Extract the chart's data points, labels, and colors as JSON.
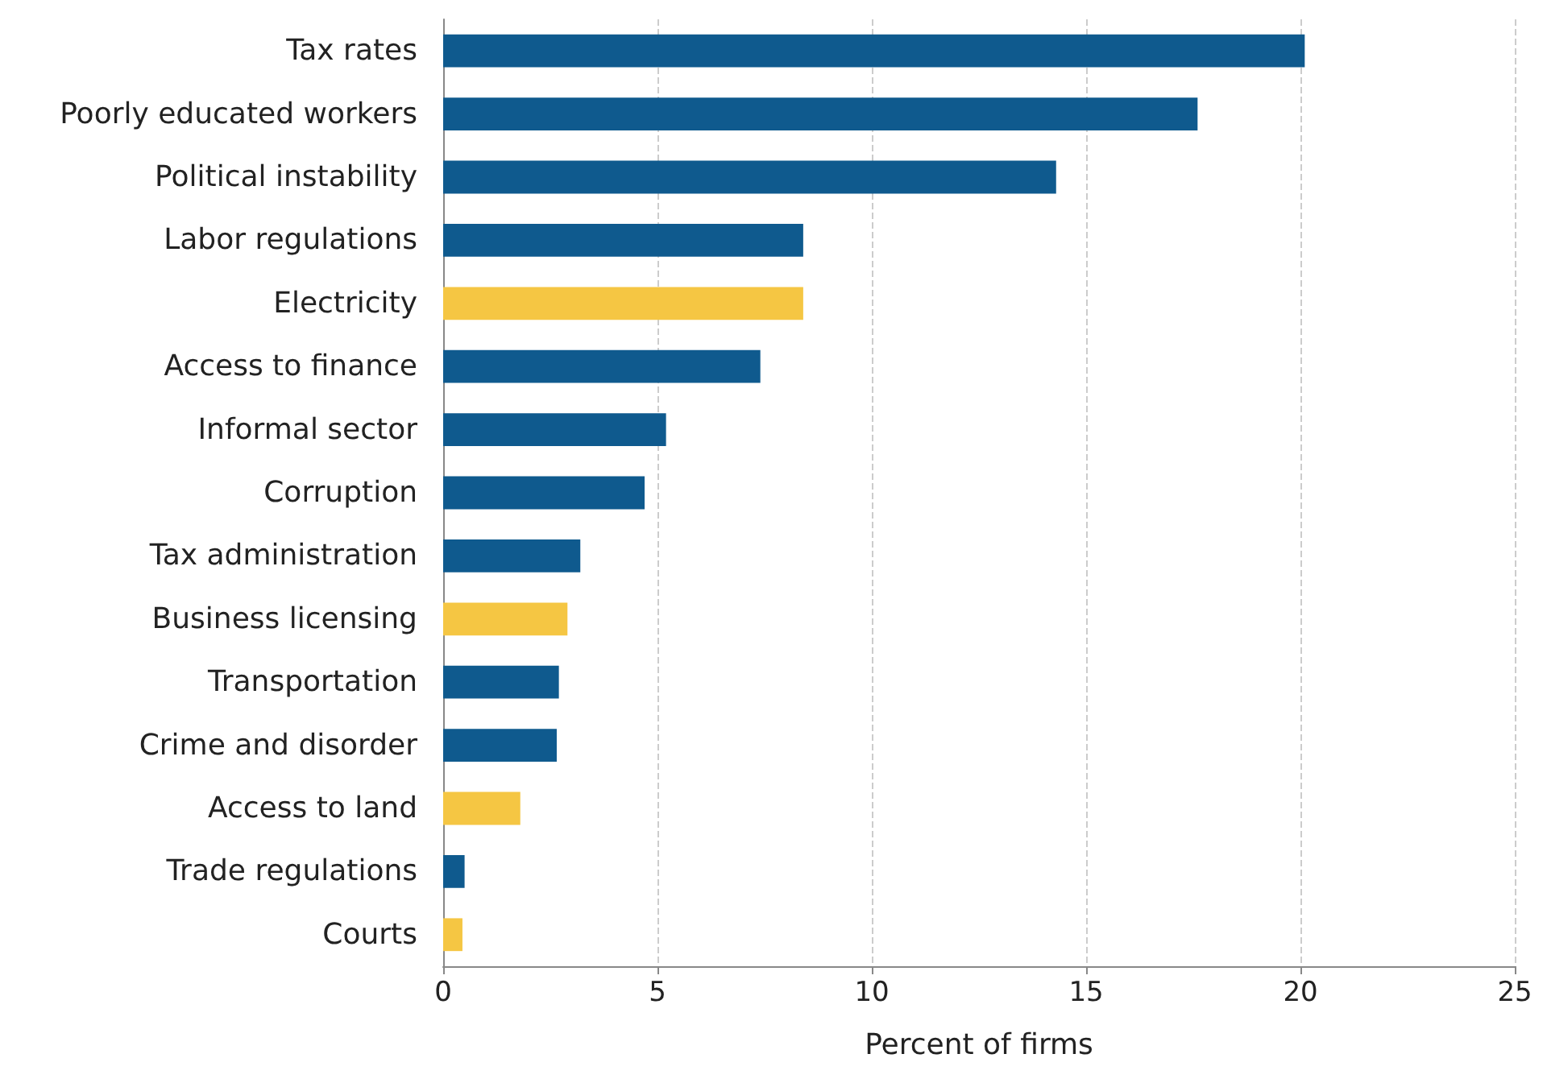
{
  "chart_data": {
    "type": "bar",
    "orientation": "horizontal",
    "xlabel": "Percent of firms",
    "categories": [
      "Tax rates",
      "Poorly educated workers",
      "Political instability",
      "Labor regulations",
      "Electricity",
      "Access to finance",
      "Informal sector",
      "Corruption",
      "Tax administration",
      "Business licensing",
      "Transportation",
      "Crime and disorder",
      "Access to land",
      "Trade regulations",
      "Courts"
    ],
    "values": [
      20.1,
      17.6,
      14.3,
      8.4,
      8.4,
      7.4,
      5.2,
      4.7,
      3.2,
      2.9,
      2.7,
      2.65,
      1.8,
      0.5,
      0.45
    ],
    "colors": [
      "#0f5a8e",
      "#0f5a8e",
      "#0f5a8e",
      "#0f5a8e",
      "#f5c643",
      "#0f5a8e",
      "#0f5a8e",
      "#0f5a8e",
      "#0f5a8e",
      "#f5c643",
      "#0f5a8e",
      "#0f5a8e",
      "#f5c643",
      "#0f5a8e",
      "#f5c643"
    ],
    "xlim": [
      0,
      25
    ],
    "xticks": [
      0,
      5,
      10,
      15,
      20,
      25
    ],
    "grid": "x"
  }
}
